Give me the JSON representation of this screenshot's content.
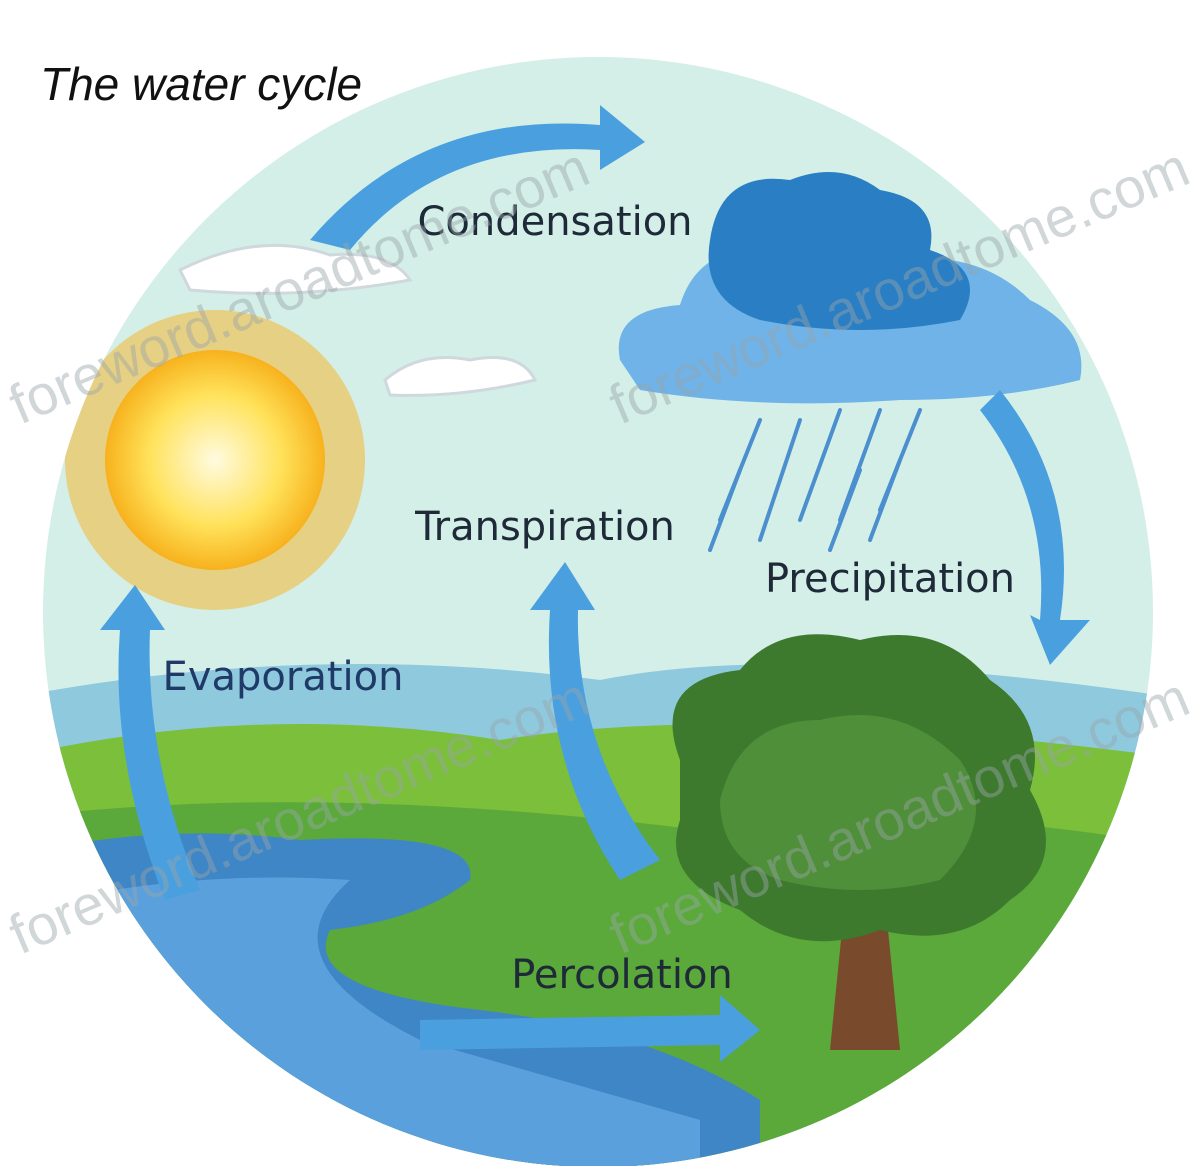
{
  "title": "The water cycle",
  "labels": [
    "Condensation",
    "Transpiration",
    "Precipitation",
    "Evaporation",
    "Percolation"
  ],
  "watermarks": [
    "foreword.aroadtome.com",
    "foreword.aroadtome.com",
    "foreword.aroadtome.com",
    "foreword.aroadtome.com"
  ]
}
